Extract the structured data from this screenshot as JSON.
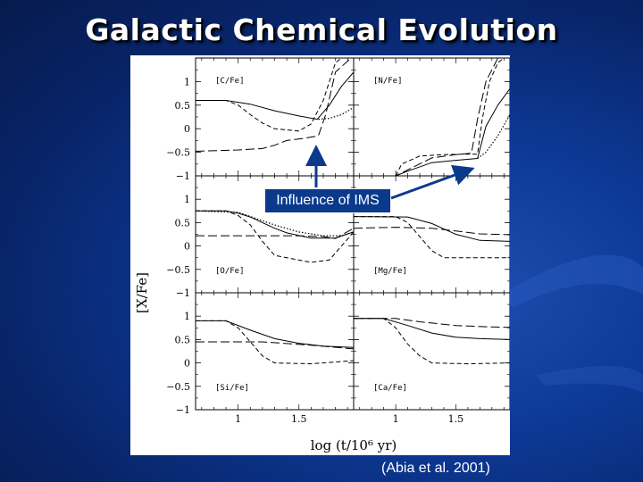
{
  "slide": {
    "title": "Galactic Chemical Evolution",
    "credit": "(Abia et al. 2001)",
    "callout": "Influence of IMS"
  },
  "colors": {
    "background": "#0b2f7d",
    "callout_bg": "#0b3a8c",
    "arrow": "#0b3a8c"
  },
  "chart_data": {
    "type": "line",
    "layout": "3x2 panel grid, shared axes",
    "xlabel": "log (t/10⁶ yr)",
    "ylabel": "[X/Fe]",
    "xlim": [
      0.65,
      1.95
    ],
    "ylim": [
      -1,
      1.5
    ],
    "x_ticks": [
      "1",
      "1.5"
    ],
    "y_ticks": [
      "−1",
      "−0.5",
      "0",
      "0.5",
      "1"
    ],
    "panels": [
      {
        "label": "[C/Fe]",
        "series": [
          {
            "style": "solid",
            "x": [
              0.65,
              0.9,
              1.1,
              1.3,
              1.5,
              1.65,
              1.75,
              1.85,
              1.95
            ],
            "y": [
              0.6,
              0.6,
              0.52,
              0.38,
              0.27,
              0.2,
              0.5,
              0.9,
              1.2
            ]
          },
          {
            "style": "dashed",
            "x": [
              0.65,
              0.9,
              1.0,
              1.1,
              1.2,
              1.3,
              1.5,
              1.6,
              1.7,
              1.8,
              1.95
            ],
            "y": [
              0.6,
              0.6,
              0.5,
              0.3,
              0.12,
              0.0,
              -0.05,
              0.1,
              0.6,
              1.4,
              1.7
            ]
          },
          {
            "style": "longdash",
            "x": [
              0.65,
              1.0,
              1.2,
              1.3,
              1.4,
              1.55,
              1.66,
              1.72,
              1.8,
              1.95
            ],
            "y": [
              -0.48,
              -0.45,
              -0.42,
              -0.35,
              -0.25,
              -0.2,
              -0.15,
              0.3,
              1.2,
              1.55
            ]
          },
          {
            "style": "dotted",
            "x": [
              1.66,
              1.75,
              1.85,
              1.95
            ],
            "y": [
              0.2,
              0.22,
              0.3,
              0.45
            ]
          }
        ]
      },
      {
        "label": "[N/Fe]",
        "series": [
          {
            "style": "solid",
            "x": [
              1.0,
              1.1,
              1.3,
              1.5,
              1.68,
              1.75,
              1.85,
              1.95
            ],
            "y": [
              -1.0,
              -0.9,
              -0.72,
              -0.67,
              -0.63,
              0.05,
              0.5,
              0.85
            ]
          },
          {
            "style": "dashed",
            "x": [
              1.0,
              1.05,
              1.2,
              1.4,
              1.6,
              1.68,
              1.72,
              1.78,
              1.85,
              1.95
            ],
            "y": [
              -1.0,
              -0.75,
              -0.58,
              -0.55,
              -0.54,
              -0.54,
              0.2,
              1.0,
              1.4,
              1.6
            ]
          },
          {
            "style": "longdash",
            "x": [
              0.65,
              1.0,
              1.3,
              1.5,
              1.63,
              1.68,
              1.75,
              1.85,
              1.95
            ],
            "y": [
              -1.0,
              -1.0,
              -0.62,
              -0.55,
              -0.52,
              0.2,
              1.0,
              1.5,
              1.65
            ]
          },
          {
            "style": "dotted",
            "x": [
              1.68,
              1.75,
              1.85,
              1.95
            ],
            "y": [
              -0.63,
              -0.5,
              -0.15,
              0.3
            ]
          }
        ]
      },
      {
        "label": "[O/Fe]",
        "series": [
          {
            "style": "solid",
            "x": [
              0.65,
              0.9,
              1.0,
              1.1,
              1.2,
              1.3,
              1.4,
              1.6,
              1.8,
              1.95
            ],
            "y": [
              0.75,
              0.75,
              0.7,
              0.62,
              0.5,
              0.38,
              0.28,
              0.17,
              0.17,
              0.3
            ]
          },
          {
            "style": "dashed",
            "x": [
              0.65,
              0.9,
              1.0,
              1.1,
              1.2,
              1.3,
              1.6,
              1.75,
              1.85,
              1.95
            ],
            "y": [
              0.75,
              0.75,
              0.65,
              0.45,
              0.1,
              -0.2,
              -0.35,
              -0.3,
              0.0,
              0.3
            ]
          },
          {
            "style": "longdash",
            "x": [
              0.65,
              1.2,
              1.5,
              1.7,
              1.8,
              1.95
            ],
            "y": [
              0.22,
              0.22,
              0.22,
              0.2,
              0.16,
              0.38
            ]
          },
          {
            "style": "dotted",
            "x": [
              0.65,
              1.0,
              1.3,
              1.5,
              1.7,
              1.85,
              1.95
            ],
            "y": [
              0.75,
              0.72,
              0.45,
              0.3,
              0.22,
              0.22,
              0.3
            ]
          }
        ]
      },
      {
        "label": "[Mg/Fe]",
        "series": [
          {
            "style": "solid",
            "x": [
              0.65,
              1.1,
              1.3,
              1.5,
              1.7,
              1.95
            ],
            "y": [
              0.63,
              0.62,
              0.48,
              0.25,
              0.12,
              0.1
            ]
          },
          {
            "style": "dashed",
            "x": [
              0.65,
              1.0,
              1.1,
              1.2,
              1.3,
              1.4,
              1.6,
              1.95
            ],
            "y": [
              0.63,
              0.63,
              0.5,
              0.2,
              -0.1,
              -0.25,
              -0.25,
              -0.25
            ]
          },
          {
            "style": "longdash",
            "x": [
              0.65,
              1.0,
              1.3,
              1.5,
              1.7,
              1.95
            ],
            "y": [
              0.38,
              0.4,
              0.38,
              0.32,
              0.26,
              0.24
            ]
          }
        ]
      },
      {
        "label": "[Si/Fe]",
        "series": [
          {
            "style": "solid",
            "x": [
              0.65,
              0.9,
              1.1,
              1.3,
              1.5,
              1.7,
              1.95
            ],
            "y": [
              0.9,
              0.9,
              0.7,
              0.52,
              0.42,
              0.36,
              0.33
            ]
          },
          {
            "style": "dashed",
            "x": [
              0.65,
              0.9,
              1.0,
              1.1,
              1.2,
              1.3,
              1.6,
              1.95
            ],
            "y": [
              0.9,
              0.9,
              0.75,
              0.45,
              0.15,
              0.0,
              -0.02,
              0.05
            ]
          },
          {
            "style": "longdash",
            "x": [
              0.65,
              1.2,
              1.6,
              1.95
            ],
            "y": [
              0.45,
              0.45,
              0.38,
              0.3
            ]
          }
        ]
      },
      {
        "label": "[Ca/Fe]",
        "series": [
          {
            "style": "solid",
            "x": [
              0.65,
              0.9,
              1.1,
              1.3,
              1.5,
              1.7,
              1.95
            ],
            "y": [
              0.95,
              0.95,
              0.8,
              0.64,
              0.55,
              0.52,
              0.5
            ]
          },
          {
            "style": "dashed",
            "x": [
              0.65,
              0.9,
              1.0,
              1.1,
              1.2,
              1.3,
              1.6,
              1.95
            ],
            "y": [
              0.95,
              0.95,
              0.75,
              0.4,
              0.15,
              0.0,
              -0.02,
              0.0
            ]
          },
          {
            "style": "longdash",
            "x": [
              0.65,
              1.0,
              1.2,
              1.5,
              1.8,
              1.95
            ],
            "y": [
              0.95,
              0.95,
              0.88,
              0.8,
              0.77,
              0.76
            ]
          }
        ]
      }
    ]
  }
}
